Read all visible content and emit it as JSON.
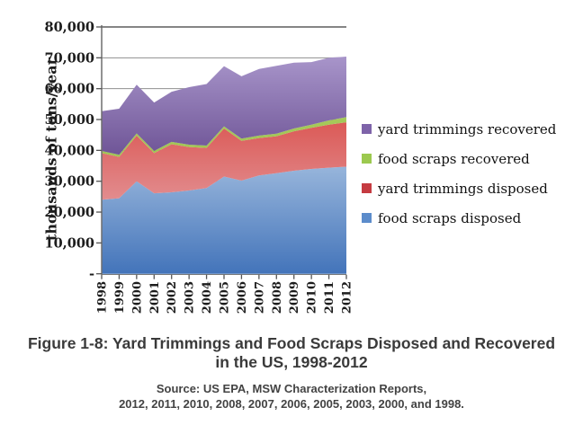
{
  "figure": {
    "caption_line1": "Figure 1-8: Yard Trimmings and Food Scraps Disposed and Recovered",
    "caption_line2": "in the US, 1998-2012",
    "source_line1": "Source: US EPA, MSW Characterization Reports,",
    "source_line2": "2012, 2011, 2010, 2008, 2007, 2006, 2005, 2003, 2000, and 1998."
  },
  "chart_data": {
    "type": "area",
    "stacked": true,
    "title": "",
    "xlabel": "",
    "ylabel": "thousands of tons/year",
    "units": "thousands of tons per year",
    "ylim": [
      0,
      80000
    ],
    "ytick_interval": 10000,
    "ytick_labels": [
      "-",
      "10,000",
      "20,000",
      "30,000",
      "40,000",
      "50,000",
      "60,000",
      "70,000",
      "80,000"
    ],
    "grid": "horizontal",
    "legend_position": "right",
    "categories": [
      "1998",
      "1999",
      "2000",
      "2001",
      "2002",
      "2003",
      "2004",
      "2005",
      "2006",
      "2007",
      "2008",
      "2009",
      "2010",
      "2011",
      "2012"
    ],
    "series": [
      {
        "name": "food scraps disposed",
        "swatch_color": "#5c8ccb",
        "gradient_top": "#97b5db",
        "gradient_bottom": "#4374ba",
        "values": [
          24000,
          24500,
          30000,
          26100,
          26400,
          27000,
          27800,
          31500,
          30200,
          31900,
          32600,
          33400,
          34000,
          34400,
          34700
        ]
      },
      {
        "name": "yard trimmings disposed",
        "swatch_color": "#c53b41",
        "gradient_top": "#db5a57",
        "gradient_bottom": "#e28c8e",
        "values": [
          15100,
          13400,
          14800,
          13000,
          15600,
          14100,
          13000,
          15600,
          12900,
          12100,
          12000,
          12800,
          13300,
          13900,
          14400
        ]
      },
      {
        "name": "food scraps recovered",
        "swatch_color": "#9cc94f",
        "gradient_top": "#a6c95a",
        "gradient_bottom": "#a0c452",
        "values": [
          700,
          700,
          700,
          700,
          750,
          750,
          750,
          700,
          700,
          800,
          800,
          900,
          1000,
          1400,
          1700
        ]
      },
      {
        "name": "yard trimmings recovered",
        "swatch_color": "#7e63a9",
        "gradient_top": "#a895ca",
        "gradient_bottom": "#6f5597",
        "values": [
          12900,
          14900,
          15800,
          15700,
          16250,
          18650,
          19950,
          19500,
          20200,
          21600,
          22000,
          21300,
          20300,
          20300,
          19600
        ]
      }
    ],
    "legend": [
      {
        "label": "yard trimmings recovered",
        "color": "#7e63a9"
      },
      {
        "label": "food scraps recovered",
        "color": "#9cc94f"
      },
      {
        "label": "yard trimmings disposed",
        "color": "#c53b41"
      },
      {
        "label": "food scraps disposed",
        "color": "#5c8ccb"
      }
    ]
  }
}
